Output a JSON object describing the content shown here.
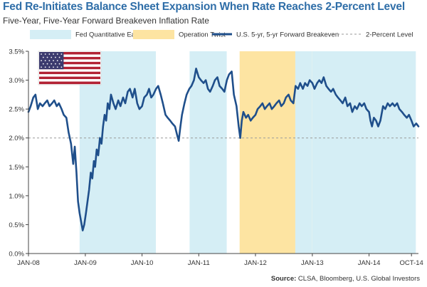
{
  "chart_data": {
    "type": "line",
    "title": "Fed Re-Initiates Balance Sheet Expansion When Rate Reaches 2-Percent Level",
    "subtitle": "Five-Year, Five-Year Forward Breakeven Inflation Rate",
    "x_start": "2008-01-01",
    "x_end": "2014-11-15",
    "xtick_labels": [
      {
        "label": "JAN-08",
        "date": "2008-01-01"
      },
      {
        "label": "JAN-09",
        "date": "2009-01-01"
      },
      {
        "label": "JAN-10",
        "date": "2010-01-01"
      },
      {
        "label": "JAN-11",
        "date": "2011-01-01"
      },
      {
        "label": "JAN-12",
        "date": "2012-01-01"
      },
      {
        "label": "JAN-13",
        "date": "2013-01-01"
      },
      {
        "label": "JAN-14",
        "date": "2014-01-01"
      },
      {
        "label": "OCT-14",
        "date": "2014-10-01"
      }
    ],
    "ylim": [
      0,
      3.5
    ],
    "yticks": [
      0,
      0.5,
      1.0,
      1.5,
      2.0,
      2.5,
      3.0,
      3.5
    ],
    "ytick_labels": [
      "0.0%",
      "0.5%",
      "1.0%",
      "1.5%",
      "2.0%",
      "2.5%",
      "3.0%",
      "3.5%"
    ],
    "legend_position": "top",
    "legend": [
      {
        "name": "Fed Quantitative Easing",
        "kind": "box",
        "color": "#d5eef5"
      },
      {
        "name": "Operation Twist",
        "kind": "box",
        "color": "#fde4a2"
      },
      {
        "name": "U.S. 5-yr, 5-yr Forward Breakeven",
        "kind": "line",
        "color": "#1f4f8b"
      },
      {
        "name": "2-Percent Level",
        "kind": "dash",
        "color": "#9a9a9a"
      }
    ],
    "shaded_periods": [
      {
        "series": "Fed Quantitative Easing",
        "start": "2008-11-25",
        "end": "2010-03-31",
        "color": "#d5eef5"
      },
      {
        "series": "Fed Quantitative Easing",
        "start": "2010-11-03",
        "end": "2011-06-30",
        "color": "#d5eef5"
      },
      {
        "series": "Operation Twist",
        "start": "2011-09-21",
        "end": "2012-12-31",
        "color": "#fde4a2"
      },
      {
        "series": "Fed Quantitative Easing",
        "start": "2012-09-13",
        "end": "2012-12-31",
        "color": "#d5eef5"
      },
      {
        "series": "Fed Quantitative Easing",
        "start": "2013-01-01",
        "end": "2014-10-29",
        "color": "#d5eef5"
      }
    ],
    "reference_line": {
      "name": "2-Percent Level",
      "y": 2.0,
      "color": "#9a9a9a"
    },
    "series": [
      {
        "name": "U.S. 5-yr, 5-yr Forward Breakeven",
        "color": "#1f4f8b",
        "points": [
          [
            "2008-01-01",
            2.45
          ],
          [
            "2008-01-15",
            2.55
          ],
          [
            "2008-02-01",
            2.7
          ],
          [
            "2008-02-15",
            2.75
          ],
          [
            "2008-03-01",
            2.5
          ],
          [
            "2008-03-15",
            2.6
          ],
          [
            "2008-04-01",
            2.55
          ],
          [
            "2008-04-15",
            2.6
          ],
          [
            "2008-05-01",
            2.65
          ],
          [
            "2008-05-15",
            2.55
          ],
          [
            "2008-06-01",
            2.6
          ],
          [
            "2008-06-15",
            2.65
          ],
          [
            "2008-07-01",
            2.55
          ],
          [
            "2008-07-15",
            2.6
          ],
          [
            "2008-08-01",
            2.5
          ],
          [
            "2008-08-15",
            2.4
          ],
          [
            "2008-09-01",
            2.35
          ],
          [
            "2008-09-15",
            2.1
          ],
          [
            "2008-10-01",
            1.9
          ],
          [
            "2008-10-15",
            1.55
          ],
          [
            "2008-10-25",
            1.85
          ],
          [
            "2008-11-05",
            1.4
          ],
          [
            "2008-11-15",
            0.9
          ],
          [
            "2008-11-25",
            0.7
          ],
          [
            "2008-12-05",
            0.55
          ],
          [
            "2008-12-15",
            0.4
          ],
          [
            "2008-12-25",
            0.5
          ],
          [
            "2009-01-05",
            0.7
          ],
          [
            "2009-01-15",
            0.9
          ],
          [
            "2009-01-25",
            1.1
          ],
          [
            "2009-02-05",
            1.4
          ],
          [
            "2009-02-15",
            1.3
          ],
          [
            "2009-02-25",
            1.6
          ],
          [
            "2009-03-05",
            1.5
          ],
          [
            "2009-03-15",
            1.8
          ],
          [
            "2009-03-25",
            1.7
          ],
          [
            "2009-04-05",
            2.0
          ],
          [
            "2009-04-15",
            1.9
          ],
          [
            "2009-04-25",
            2.2
          ],
          [
            "2009-05-05",
            2.4
          ],
          [
            "2009-05-15",
            2.3
          ],
          [
            "2009-05-25",
            2.6
          ],
          [
            "2009-06-05",
            2.5
          ],
          [
            "2009-06-15",
            2.75
          ],
          [
            "2009-07-01",
            2.6
          ],
          [
            "2009-07-15",
            2.5
          ],
          [
            "2009-08-01",
            2.65
          ],
          [
            "2009-08-15",
            2.55
          ],
          [
            "2009-09-01",
            2.7
          ],
          [
            "2009-09-15",
            2.6
          ],
          [
            "2009-10-01",
            2.8
          ],
          [
            "2009-10-15",
            2.85
          ],
          [
            "2009-11-01",
            2.7
          ],
          [
            "2009-11-15",
            2.85
          ],
          [
            "2009-12-01",
            2.6
          ],
          [
            "2009-12-15",
            2.5
          ],
          [
            "2010-01-01",
            2.55
          ],
          [
            "2010-01-15",
            2.7
          ],
          [
            "2010-02-01",
            2.75
          ],
          [
            "2010-02-15",
            2.85
          ],
          [
            "2010-03-01",
            2.7
          ],
          [
            "2010-03-15",
            2.75
          ],
          [
            "2010-04-01",
            2.85
          ],
          [
            "2010-04-15",
            2.9
          ],
          [
            "2010-05-01",
            2.75
          ],
          [
            "2010-05-15",
            2.6
          ],
          [
            "2010-06-01",
            2.4
          ],
          [
            "2010-06-15",
            2.35
          ],
          [
            "2010-07-01",
            2.3
          ],
          [
            "2010-07-15",
            2.25
          ],
          [
            "2010-08-01",
            2.2
          ],
          [
            "2010-08-15",
            2.05
          ],
          [
            "2010-08-25",
            1.95
          ],
          [
            "2010-09-05",
            2.2
          ],
          [
            "2010-09-15",
            2.4
          ],
          [
            "2010-10-01",
            2.6
          ],
          [
            "2010-10-15",
            2.75
          ],
          [
            "2010-11-01",
            2.85
          ],
          [
            "2010-11-15",
            2.9
          ],
          [
            "2010-12-01",
            3.0
          ],
          [
            "2010-12-15",
            3.2
          ],
          [
            "2011-01-01",
            3.05
          ],
          [
            "2011-01-15",
            3.0
          ],
          [
            "2011-02-01",
            2.95
          ],
          [
            "2011-02-15",
            3.0
          ],
          [
            "2011-03-01",
            2.85
          ],
          [
            "2011-03-15",
            2.8
          ],
          [
            "2011-04-01",
            2.9
          ],
          [
            "2011-04-15",
            3.0
          ],
          [
            "2011-05-01",
            3.05
          ],
          [
            "2011-05-15",
            2.9
          ],
          [
            "2011-06-01",
            2.85
          ],
          [
            "2011-06-15",
            2.8
          ],
          [
            "2011-07-01",
            3.0
          ],
          [
            "2011-07-15",
            3.1
          ],
          [
            "2011-08-01",
            3.15
          ],
          [
            "2011-08-15",
            2.75
          ],
          [
            "2011-09-01",
            2.55
          ],
          [
            "2011-09-15",
            2.2
          ],
          [
            "2011-09-25",
            2.0
          ],
          [
            "2011-10-05",
            2.3
          ],
          [
            "2011-10-15",
            2.45
          ],
          [
            "2011-11-01",
            2.35
          ],
          [
            "2011-11-15",
            2.4
          ],
          [
            "2011-12-01",
            2.3
          ],
          [
            "2011-12-15",
            2.35
          ],
          [
            "2012-01-01",
            2.4
          ],
          [
            "2012-01-15",
            2.5
          ],
          [
            "2012-02-01",
            2.55
          ],
          [
            "2012-02-15",
            2.6
          ],
          [
            "2012-03-01",
            2.5
          ],
          [
            "2012-03-15",
            2.55
          ],
          [
            "2012-04-01",
            2.6
          ],
          [
            "2012-04-15",
            2.5
          ],
          [
            "2012-05-01",
            2.55
          ],
          [
            "2012-05-15",
            2.6
          ],
          [
            "2012-06-01",
            2.65
          ],
          [
            "2012-06-15",
            2.55
          ],
          [
            "2012-07-01",
            2.6
          ],
          [
            "2012-07-15",
            2.7
          ],
          [
            "2012-08-01",
            2.75
          ],
          [
            "2012-08-15",
            2.65
          ],
          [
            "2012-09-01",
            2.6
          ],
          [
            "2012-09-15",
            2.9
          ],
          [
            "2012-10-01",
            2.85
          ],
          [
            "2012-10-15",
            2.95
          ],
          [
            "2012-11-01",
            2.85
          ],
          [
            "2012-11-15",
            2.95
          ],
          [
            "2012-12-01",
            2.9
          ],
          [
            "2012-12-15",
            3.0
          ],
          [
            "2013-01-01",
            2.95
          ],
          [
            "2013-01-15",
            2.85
          ],
          [
            "2013-02-01",
            2.95
          ],
          [
            "2013-02-15",
            3.0
          ],
          [
            "2013-03-01",
            2.95
          ],
          [
            "2013-03-15",
            3.05
          ],
          [
            "2013-04-01",
            2.9
          ],
          [
            "2013-04-15",
            2.85
          ],
          [
            "2013-05-01",
            2.8
          ],
          [
            "2013-05-15",
            2.85
          ],
          [
            "2013-06-01",
            2.75
          ],
          [
            "2013-06-15",
            2.7
          ],
          [
            "2013-07-01",
            2.65
          ],
          [
            "2013-07-15",
            2.6
          ],
          [
            "2013-08-01",
            2.7
          ],
          [
            "2013-08-15",
            2.55
          ],
          [
            "2013-09-01",
            2.6
          ],
          [
            "2013-09-15",
            2.45
          ],
          [
            "2013-10-01",
            2.55
          ],
          [
            "2013-10-15",
            2.5
          ],
          [
            "2013-11-01",
            2.6
          ],
          [
            "2013-11-15",
            2.55
          ],
          [
            "2013-12-01",
            2.6
          ],
          [
            "2013-12-15",
            2.5
          ],
          [
            "2014-01-01",
            2.45
          ],
          [
            "2014-01-10",
            2.3
          ],
          [
            "2014-01-20",
            2.2
          ],
          [
            "2014-02-01",
            2.35
          ],
          [
            "2014-02-15",
            2.3
          ],
          [
            "2014-03-01",
            2.2
          ],
          [
            "2014-03-15",
            2.3
          ],
          [
            "2014-04-01",
            2.55
          ],
          [
            "2014-04-15",
            2.5
          ],
          [
            "2014-05-01",
            2.6
          ],
          [
            "2014-05-15",
            2.55
          ],
          [
            "2014-06-01",
            2.6
          ],
          [
            "2014-06-15",
            2.55
          ],
          [
            "2014-07-01",
            2.6
          ],
          [
            "2014-07-15",
            2.5
          ],
          [
            "2014-08-01",
            2.45
          ],
          [
            "2014-08-15",
            2.4
          ],
          [
            "2014-09-01",
            2.35
          ],
          [
            "2014-09-15",
            2.4
          ],
          [
            "2014-10-01",
            2.3
          ],
          [
            "2014-10-15",
            2.2
          ],
          [
            "2014-11-01",
            2.25
          ],
          [
            "2014-11-15",
            2.2
          ]
        ]
      }
    ]
  },
  "source": {
    "label": "Source:",
    "text": " CLSA, Bloomberg, U.S. Global Investors"
  }
}
